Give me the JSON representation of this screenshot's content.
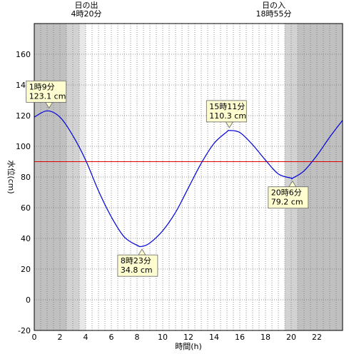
{
  "chart_data": {
    "type": "line",
    "xlabel": "時間(h)",
    "ylabel": "水位(cm)",
    "xlim": [
      0,
      24
    ],
    "ylim": [
      -20,
      180
    ],
    "x_ticks": [
      0,
      2,
      4,
      6,
      8,
      10,
      12,
      14,
      16,
      18,
      20,
      22
    ],
    "y_ticks": [
      -20,
      0,
      20,
      40,
      60,
      80,
      100,
      120,
      140,
      160
    ],
    "x_minor_step": 0.5,
    "grid": true,
    "reference_line": {
      "y": 90,
      "color": "#e00000"
    },
    "line_color": "#0000dd",
    "sun_events": [
      {
        "label": "日の出",
        "time": "4時20分",
        "x": 4.333
      },
      {
        "label": "日の入",
        "time": "18時55分",
        "x": 18.917
      }
    ],
    "shading": [
      {
        "from": 0,
        "to": 2.5,
        "level": "night"
      },
      {
        "from": 2.5,
        "to": 3.5,
        "level": "twilight"
      },
      {
        "from": 3.5,
        "to": 4.0,
        "level": "dawn"
      },
      {
        "from": 19.5,
        "to": 20.5,
        "level": "twilight"
      },
      {
        "from": 20.5,
        "to": 24,
        "level": "night"
      }
    ],
    "shading_colors": {
      "night": "#c0c0c0",
      "twilight": "#d2d2d2",
      "dawn": "#e8e8e8"
    },
    "series": [
      {
        "x": [
          0,
          1,
          2,
          3,
          4,
          5,
          6,
          7,
          8,
          8.383,
          9,
          10,
          11,
          12,
          13,
          14,
          15,
          15.183,
          16,
          17,
          18,
          19,
          20,
          20.1,
          21,
          22,
          23,
          24
        ],
        "values": [
          119,
          123.1,
          119,
          107,
          91,
          71,
          54,
          41,
          35.5,
          34.8,
          37,
          45,
          57,
          73,
          89,
          102,
          109.5,
          110.3,
          109,
          101,
          91,
          82,
          79.3,
          79.2,
          84,
          94,
          106,
          117
        ]
      }
    ],
    "annotations": [
      {
        "line1": "1時9分",
        "line2": "123.1 cm",
        "x": 1.15,
        "y": 123.1,
        "placement": "above"
      },
      {
        "line1": "8時23分",
        "line2": "34.8 cm",
        "x": 8.383,
        "y": 34.8,
        "placement": "below"
      },
      {
        "line1": "15時11分",
        "line2": "110.3 cm",
        "x": 15.183,
        "y": 110.3,
        "placement": "above"
      },
      {
        "line1": "20時6分",
        "line2": "79.2 cm",
        "x": 20.1,
        "y": 79.2,
        "placement": "below"
      }
    ]
  }
}
